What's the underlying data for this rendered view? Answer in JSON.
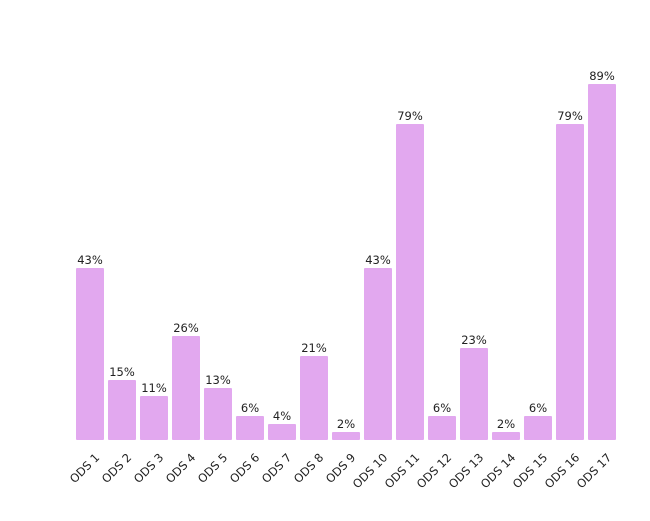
{
  "chart_data": {
    "type": "bar",
    "categories": [
      "ODS 1",
      "ODS 2",
      "ODS 3",
      "ODS 4",
      "ODS 5",
      "ODS 6",
      "ODS 7",
      "ODS 8",
      "ODS 9",
      "ODS 10",
      "ODS 11",
      "ODS 12",
      "ODS 13",
      "ODS 14",
      "ODS 15",
      "ODS 16",
      "ODS 17"
    ],
    "values": [
      43,
      15,
      11,
      26,
      13,
      6,
      4,
      21,
      2,
      43,
      79,
      6,
      23,
      2,
      6,
      79,
      89
    ],
    "data_labels": [
      "43%",
      "15%",
      "11%",
      "26%",
      "13%",
      "6%",
      "4%",
      "21%",
      "2%",
      "43%",
      "79%",
      "6%",
      "23%",
      "2%",
      "6%",
      "79%",
      "89%"
    ],
    "title": "",
    "xlabel": "",
    "ylabel": "",
    "ylim": [
      0,
      100
    ],
    "grid": false,
    "bar_color": "#e2a8ef"
  }
}
